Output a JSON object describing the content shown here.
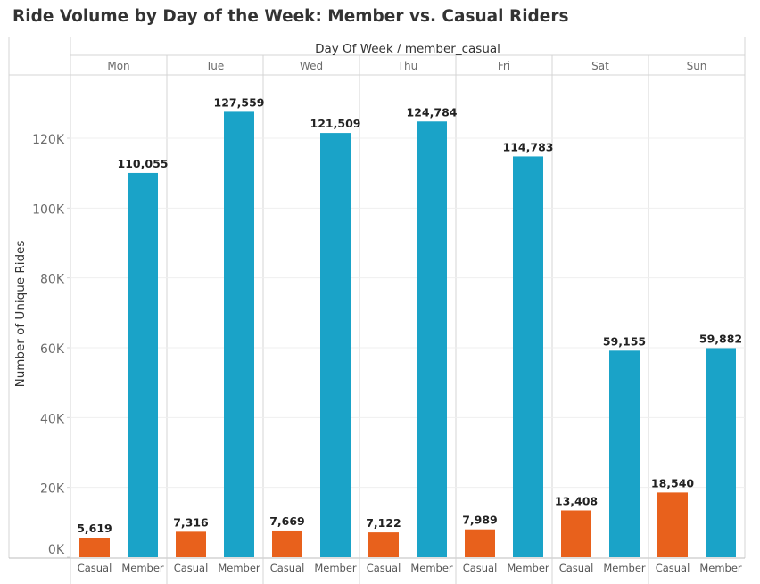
{
  "chart_data": {
    "type": "bar",
    "title": "Ride Volume by Day of the Week: Member vs. Casual Riders",
    "column_header": "Day Of Week  /  member_casual",
    "ylabel": "Number of Unique Rides",
    "ylim": [
      0,
      140000
    ],
    "yticks": [
      {
        "value": 0,
        "label": "0K"
      },
      {
        "value": 20000,
        "label": "20K"
      },
      {
        "value": 40000,
        "label": "40K"
      },
      {
        "value": 60000,
        "label": "60K"
      },
      {
        "value": 80000,
        "label": "80K"
      },
      {
        "value": 100000,
        "label": "100K"
      },
      {
        "value": 120000,
        "label": "120K"
      }
    ],
    "categories": [
      "Mon",
      "Tue",
      "Wed",
      "Thu",
      "Fri",
      "Sat",
      "Sun"
    ],
    "subcategories": [
      "Casual",
      "Member"
    ],
    "series": [
      {
        "name": "Casual",
        "color": "#e8611c",
        "values": [
          5619,
          7316,
          7669,
          7122,
          7989,
          13408,
          18540
        ],
        "labels": [
          "5,619",
          "7,316",
          "7,669",
          "7,122",
          "7,989",
          "13,408",
          "18,540"
        ]
      },
      {
        "name": "Member",
        "color": "#1aa3c8",
        "values": [
          110055,
          127559,
          121509,
          124784,
          114783,
          59155,
          59882
        ],
        "labels": [
          "110,055",
          "127,559",
          "121,509",
          "124,784",
          "114,783",
          "59,155",
          "59,882"
        ]
      }
    ],
    "grid": true
  }
}
